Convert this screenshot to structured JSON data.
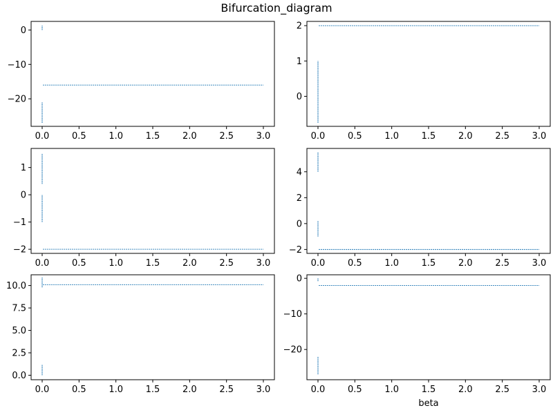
{
  "figure": {
    "title": "Bifurcation_diagram",
    "line_color": "#1f77b4"
  },
  "chart_data": [
    {
      "type": "scatter",
      "xlim": [
        -0.15,
        3.15
      ],
      "ylim": [
        -28,
        2.5
      ],
      "xticks": [
        0.0,
        0.5,
        1.0,
        1.5,
        2.0,
        2.5,
        3.0
      ],
      "xtick_labels": [
        "0.0",
        "0.5",
        "1.0",
        "1.5",
        "2.0",
        "2.5",
        "3.0"
      ],
      "yticks": [
        0,
        -10,
        -20
      ],
      "ytick_labels": [
        "0",
        "−10",
        "−20"
      ],
      "xlabel": "",
      "vertical_segments": [
        {
          "x": 0.0,
          "y": [
            0.0,
            1.3
          ]
        },
        {
          "x": 0.0,
          "y": [
            -27.0,
            -21.0
          ]
        }
      ],
      "plateau": {
        "x": [
          0.01,
          3.0
        ],
        "y": -16.0
      }
    },
    {
      "type": "scatter",
      "xlim": [
        -0.15,
        3.15
      ],
      "ylim": [
        -0.85,
        2.12
      ],
      "xticks": [
        0.0,
        0.5,
        1.0,
        1.5,
        2.0,
        2.5,
        3.0
      ],
      "xtick_labels": [
        "0.0",
        "0.5",
        "1.0",
        "1.5",
        "2.0",
        "2.5",
        "3.0"
      ],
      "yticks": [
        2,
        1,
        0
      ],
      "ytick_labels": [
        "2",
        "1",
        "0"
      ],
      "xlabel": "",
      "vertical_segments": [
        {
          "x": 0.0,
          "y": [
            -0.75,
            1.0
          ]
        }
      ],
      "plateau": {
        "x": [
          0.01,
          3.0
        ],
        "y": 2.0
      }
    },
    {
      "type": "scatter",
      "xlim": [
        -0.15,
        3.15
      ],
      "ylim": [
        -2.15,
        1.7
      ],
      "xticks": [
        0.0,
        0.5,
        1.0,
        1.5,
        2.0,
        2.5,
        3.0
      ],
      "xtick_labels": [
        "0.0",
        "0.5",
        "1.0",
        "1.5",
        "2.0",
        "2.5",
        "3.0"
      ],
      "yticks": [
        1,
        0,
        -1,
        -2
      ],
      "ytick_labels": [
        "1",
        "0",
        "−1",
        "−2"
      ],
      "xlabel": "",
      "vertical_segments": [
        {
          "x": 0.0,
          "y": [
            0.4,
            1.5
          ]
        },
        {
          "x": 0.0,
          "y": [
            -1.0,
            0.0
          ]
        }
      ],
      "plateau": {
        "x": [
          0.01,
          3.0
        ],
        "y": -2.0
      }
    },
    {
      "type": "scatter",
      "xlim": [
        -0.15,
        3.15
      ],
      "ylim": [
        -2.3,
        5.8
      ],
      "xticks": [
        0.0,
        0.5,
        1.0,
        1.5,
        2.0,
        2.5,
        3.0
      ],
      "xtick_labels": [
        "0.0",
        "0.5",
        "1.0",
        "1.5",
        "2.0",
        "2.5",
        "3.0"
      ],
      "yticks": [
        4,
        2,
        0,
        -2
      ],
      "ytick_labels": [
        "4",
        "2",
        "0",
        "−2"
      ],
      "xlabel": "",
      "vertical_segments": [
        {
          "x": 0.0,
          "y": [
            4.0,
            5.5
          ]
        },
        {
          "x": 0.0,
          "y": [
            -1.0,
            0.2
          ]
        }
      ],
      "plateau": {
        "x": [
          0.01,
          3.0
        ],
        "y": -2.0
      }
    },
    {
      "type": "scatter",
      "xlim": [
        -0.15,
        3.15
      ],
      "ylim": [
        -0.5,
        11.2
      ],
      "xticks": [
        0.0,
        0.5,
        1.0,
        1.5,
        2.0,
        2.5,
        3.0
      ],
      "xtick_labels": [
        "0.0",
        "0.5",
        "1.0",
        "1.5",
        "2.0",
        "2.5",
        "3.0"
      ],
      "yticks": [
        10.0,
        7.5,
        5.0,
        2.5,
        0.0
      ],
      "ytick_labels": [
        "10.0",
        "7.5",
        "5.0",
        "2.5",
        "0.0"
      ],
      "xlabel": "",
      "vertical_segments": [
        {
          "x": 0.0,
          "y": [
            9.8,
            10.9
          ]
        },
        {
          "x": 0.0,
          "y": [
            0.0,
            1.2
          ]
        }
      ],
      "plateau": {
        "x": [
          0.01,
          3.0
        ],
        "y": 10.1
      }
    },
    {
      "type": "scatter",
      "xlim": [
        -0.15,
        3.15
      ],
      "ylim": [
        -28.5,
        1.0
      ],
      "xticks": [
        0.0,
        0.5,
        1.0,
        1.5,
        2.0,
        2.5,
        3.0
      ],
      "xtick_labels": [
        "0.0",
        "0.5",
        "1.0",
        "1.5",
        "2.0",
        "2.5",
        "3.0"
      ],
      "yticks": [
        0,
        -10,
        -20
      ],
      "ytick_labels": [
        "0",
        "−10",
        "−20"
      ],
      "xlabel": "beta",
      "vertical_segments": [
        {
          "x": 0.0,
          "y": [
            -0.8,
            0.0
          ]
        },
        {
          "x": 0.0,
          "y": [
            -27.0,
            -22.0
          ]
        }
      ],
      "plateau": {
        "x": [
          0.01,
          3.0
        ],
        "y": -2.0
      }
    }
  ]
}
